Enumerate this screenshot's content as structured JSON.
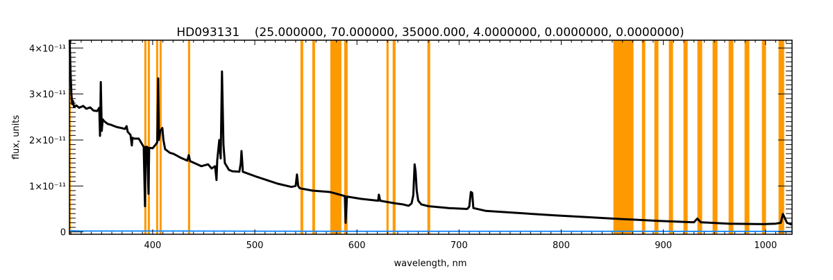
{
  "chart_data": {
    "type": "line",
    "title": "HD093131    (25.000000, 70.000000, 35000.000, 4.0000000, 0.0000000, 0.0000000)",
    "xlabel": "wavelength, nm",
    "ylabel": "flux, units",
    "xlim": [
      318.5,
      1026
    ],
    "ylim": [
      -0.05,
      4.17
    ],
    "y_unit_scale": 1e-11,
    "grid": false,
    "xticks": [
      400,
      500,
      600,
      700,
      800,
      900,
      1000
    ],
    "xtick_labels": [
      "400",
      "500",
      "600",
      "700",
      "800",
      "900",
      "1000"
    ],
    "x_minor_step": 10,
    "yticks": [
      0,
      1,
      2,
      3,
      4
    ],
    "ytick_labels": [
      "0",
      "1×10⁻¹¹",
      "2×10⁻¹¹",
      "3×10⁻¹¹",
      "4×10⁻¹¹"
    ],
    "y_minor_step": 0.1,
    "colors": {
      "spectrum": "#000000",
      "error": "#1a8cff",
      "mask": "#ff9900",
      "axis": "#000000"
    },
    "masked_regions": [
      [
        318.5,
        319.8
      ],
      [
        391.8,
        393.9
      ],
      [
        395.2,
        397.3
      ],
      [
        403.4,
        405.4
      ],
      [
        406.8,
        408.8
      ],
      [
        434.6,
        436.7
      ],
      [
        544.7,
        547.4
      ],
      [
        556.3,
        559.0
      ],
      [
        573.9,
        584.8
      ],
      [
        587.5,
        590.9
      ],
      [
        628.9,
        631.0
      ],
      [
        635.0,
        637.8
      ],
      [
        669.0,
        671.7
      ],
      [
        851.1,
        870.8
      ],
      [
        879.0,
        882.3
      ],
      [
        891.2,
        895.2
      ],
      [
        905.4,
        909.5
      ],
      [
        919.7,
        923.8
      ],
      [
        933.3,
        938.0
      ],
      [
        948.2,
        953.0
      ],
      [
        963.9,
        968.6
      ],
      [
        979.5,
        984.2
      ],
      [
        996.5,
        1000.5
      ],
      [
        1012.8,
        1018.3
      ]
    ],
    "series": [
      {
        "name": "spectrum",
        "points": [
          [
            318.8,
            4.17
          ],
          [
            319.5,
            3.53
          ],
          [
            320.5,
            3.0
          ],
          [
            321.2,
            2.78
          ],
          [
            322,
            2.85
          ],
          [
            323,
            2.72
          ],
          [
            325.3,
            2.75
          ],
          [
            328,
            2.7
          ],
          [
            332,
            2.74
          ],
          [
            335,
            2.68
          ],
          [
            338.9,
            2.71
          ],
          [
            342,
            2.64
          ],
          [
            345.7,
            2.63
          ],
          [
            347.7,
            2.7
          ],
          [
            348.5,
            2.09
          ],
          [
            349.2,
            3.26
          ],
          [
            350.2,
            2.2
          ],
          [
            351.1,
            2.45
          ],
          [
            352.4,
            2.41
          ],
          [
            356,
            2.35
          ],
          [
            359.2,
            2.33
          ],
          [
            365,
            2.28
          ],
          [
            369.4,
            2.26
          ],
          [
            372.8,
            2.24
          ],
          [
            374.5,
            2.3
          ],
          [
            375.5,
            2.18
          ],
          [
            378.3,
            2.11
          ],
          [
            379.6,
            1.88
          ],
          [
            380.2,
            2.05
          ],
          [
            381.7,
            2.03
          ],
          [
            386.4,
            2.03
          ],
          [
            391.2,
            1.85
          ],
          [
            392.5,
            0.56
          ],
          [
            393.2,
            1.85
          ],
          [
            394.6,
            1.85
          ],
          [
            395.9,
            0.83
          ],
          [
            396.6,
            1.83
          ],
          [
            400,
            1.82
          ],
          [
            403,
            1.9
          ],
          [
            404.5,
            1.95
          ],
          [
            405.4,
            3.34
          ],
          [
            406.1,
            2.0
          ],
          [
            407.5,
            2.2
          ],
          [
            409.5,
            2.26
          ],
          [
            410.5,
            2.0
          ],
          [
            412.2,
            1.8
          ],
          [
            417,
            1.72
          ],
          [
            420.4,
            1.7
          ],
          [
            427,
            1.62
          ],
          [
            434,
            1.55
          ],
          [
            435.3,
            1.67
          ],
          [
            436.7,
            1.54
          ],
          [
            447.6,
            1.43
          ],
          [
            454.3,
            1.47
          ],
          [
            457.7,
            1.38
          ],
          [
            461.1,
            1.43
          ],
          [
            462.5,
            1.13
          ],
          [
            463.2,
            1.55
          ],
          [
            465.2,
            2.0
          ],
          [
            466.6,
            1.6
          ],
          [
            467.9,
            3.49
          ],
          [
            469.3,
            1.9
          ],
          [
            470.7,
            1.5
          ],
          [
            474.7,
            1.35
          ],
          [
            478.1,
            1.32
          ],
          [
            484.9,
            1.31
          ],
          [
            486.3,
            1.5
          ],
          [
            487,
            1.76
          ],
          [
            487.8,
            1.5
          ],
          [
            488.3,
            1.31
          ],
          [
            501.9,
            1.2
          ],
          [
            522.3,
            1.05
          ],
          [
            535.9,
            0.98
          ],
          [
            540,
            1.0
          ],
          [
            541.3,
            1.25
          ],
          [
            542.5,
            1.0
          ],
          [
            544,
            0.95
          ],
          [
            556.3,
            0.9
          ],
          [
            573.2,
            0.87
          ],
          [
            575,
            0.86
          ],
          [
            584.8,
            0.8
          ],
          [
            588.2,
            0.78
          ],
          [
            588.9,
            0.2
          ],
          [
            590.2,
            0.77
          ],
          [
            603.8,
            0.72
          ],
          [
            620.8,
            0.68
          ],
          [
            621.5,
            0.81
          ],
          [
            622.8,
            0.68
          ],
          [
            637.8,
            0.62
          ],
          [
            645,
            0.6
          ],
          [
            650.7,
            0.57
          ],
          [
            653.5,
            0.62
          ],
          [
            655.2,
            0.8
          ],
          [
            656.5,
            1.47
          ],
          [
            657.5,
            1.3
          ],
          [
            658.5,
            0.9
          ],
          [
            660,
            0.68
          ],
          [
            663,
            0.6
          ],
          [
            670,
            0.56
          ],
          [
            690,
            0.52
          ],
          [
            708,
            0.5
          ],
          [
            710,
            0.55
          ],
          [
            711.5,
            0.87
          ],
          [
            712.8,
            0.85
          ],
          [
            714,
            0.52
          ],
          [
            726,
            0.46
          ],
          [
            760,
            0.41
          ],
          [
            794,
            0.36
          ],
          [
            828,
            0.32
          ],
          [
            850.4,
            0.29
          ],
          [
            868.8,
            0.27
          ],
          [
            895.9,
            0.24
          ],
          [
            929.9,
            0.21
          ],
          [
            933.3,
            0.29
          ],
          [
            936.7,
            0.21
          ],
          [
            963.9,
            0.18
          ],
          [
            997.8,
            0.17
          ],
          [
            1010,
            0.18
          ],
          [
            1015,
            0.2
          ],
          [
            1017,
            0.39
          ],
          [
            1019,
            0.3
          ],
          [
            1021,
            0.2
          ],
          [
            1025.7,
            0.16
          ]
        ]
      },
      {
        "name": "error",
        "points": [
          [
            318.8,
            0.03
          ],
          [
            330,
            0.02
          ],
          [
            400,
            0.02
          ],
          [
            600,
            0.015
          ],
          [
            800,
            0.015
          ],
          [
            1025.7,
            0.012
          ]
        ]
      }
    ]
  }
}
